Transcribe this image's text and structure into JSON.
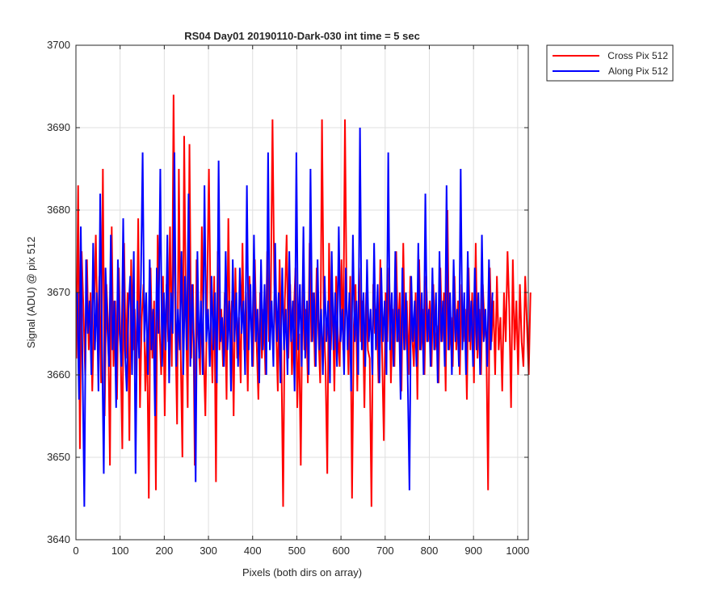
{
  "chart_data": {
    "type": "line",
    "title": "RS04 Day01 20190110-Dark-030 int time = 5 sec",
    "xlabel": "Pixels (both dirs on array)",
    "ylabel": "Signal (ADU) @ pix 512",
    "xlim": [
      0,
      1024
    ],
    "ylim": [
      3640,
      3700
    ],
    "xticks": [
      0,
      100,
      200,
      300,
      400,
      500,
      600,
      700,
      800,
      900,
      1000
    ],
    "yticks": [
      3640,
      3650,
      3660,
      3670,
      3680,
      3690,
      3700
    ],
    "grid": true,
    "legend_position": "outside-top-right",
    "series": [
      {
        "name": "Cross Pix 512",
        "color": "#ff0000",
        "x_start": 1,
        "x_step": 4,
        "values": [
          3662,
          3683,
          3651,
          3675,
          3668,
          3660,
          3674,
          3663,
          3670,
          3658,
          3667,
          3677,
          3664,
          3672,
          3659,
          3685,
          3655,
          3671,
          3666,
          3649,
          3678,
          3661,
          3669,
          3657,
          3673,
          3664,
          3651,
          3676,
          3662,
          3670,
          3652,
          3674,
          3663,
          3668,
          3660,
          3679,
          3656,
          3667,
          3671,
          3658,
          3665,
          3645,
          3673,
          3662,
          3669,
          3646,
          3677,
          3666,
          3660,
          3672,
          3655,
          3671,
          3664,
          3678,
          3661,
          3694,
          3666,
          3654,
          3685,
          3663,
          3650,
          3689,
          3667,
          3656,
          3688,
          3662,
          3671,
          3649,
          3674,
          3665,
          3660,
          3678,
          3663,
          3655,
          3670,
          3685,
          3667,
          3659,
          3672,
          3647,
          3675,
          3663,
          3668,
          3661,
          3670,
          3657,
          3679,
          3664,
          3669,
          3655,
          3673,
          3662,
          3667,
          3659,
          3676,
          3663,
          3670,
          3658,
          3672,
          3666,
          3661,
          3674,
          3664,
          3657,
          3670,
          3662,
          3668,
          3660,
          3675,
          3664,
          3669,
          3691,
          3671,
          3666,
          3658,
          3674,
          3663,
          3644,
          3669,
          3677,
          3662,
          3671,
          3660,
          3667,
          3673,
          3656,
          3665,
          3649,
          3671,
          3663,
          3668,
          3659,
          3676,
          3664,
          3670,
          3661,
          3673,
          3665,
          3659,
          3691,
          3667,
          3661,
          3648,
          3676,
          3663,
          3670,
          3658,
          3672,
          3665,
          3661,
          3674,
          3663,
          3691,
          3668,
          3660,
          3672,
          3645,
          3666,
          3671,
          3658,
          3673,
          3664,
          3669,
          3656,
          3670,
          3663,
          3662,
          3644,
          3671,
          3665,
          3668,
          3659,
          3674,
          3663,
          3652,
          3670,
          3664,
          3673,
          3659,
          3668,
          3661,
          3675,
          3664,
          3670,
          3658,
          3676,
          3663,
          3669,
          3660,
          3672,
          3665,
          3661,
          3670,
          3657,
          3674,
          3663,
          3668,
          3660,
          3672,
          3664,
          3669,
          3661,
          3671,
          3663,
          3666,
          3659,
          3673,
          3664,
          3670,
          3658,
          3680,
          3663,
          3667,
          3661,
          3672,
          3663,
          3669,
          3660,
          3671,
          3664,
          3668,
          3657,
          3673,
          3663,
          3670,
          3659,
          3676,
          3662,
          3668,
          3660,
          3671,
          3666,
          3664,
          3646,
          3673,
          3664,
          3669,
          3660,
          3672,
          3663,
          3667,
          3658,
          3670,
          3664,
          3675,
          3668,
          3656,
          3674,
          3663,
          3669,
          3660,
          3671,
          3664,
          3661,
          3672,
          3666,
          3660,
          3670
        ]
      },
      {
        "name": "Along Pix 512",
        "color": "#0000ff",
        "x_start": 3,
        "x_step": 4,
        "values": [
          3670,
          3657,
          3678,
          3661,
          3644,
          3674,
          3665,
          3669,
          3660,
          3676,
          3663,
          3670,
          3658,
          3682,
          3664,
          3648,
          3673,
          3666,
          3661,
          3677,
          3663,
          3669,
          3656,
          3674,
          3665,
          3661,
          3679,
          3663,
          3658,
          3668,
          3672,
          3660,
          3675,
          3648,
          3669,
          3662,
          3671,
          3687,
          3664,
          3670,
          3660,
          3674,
          3663,
          3668,
          3655,
          3673,
          3665,
          3685,
          3661,
          3670,
          3663,
          3677,
          3659,
          3670,
          3665,
          3687,
          3661,
          3668,
          3663,
          3675,
          3660,
          3672,
          3663,
          3682,
          3661,
          3671,
          3664,
          3647,
          3675,
          3662,
          3669,
          3660,
          3683,
          3664,
          3668,
          3661,
          3672,
          3663,
          3670,
          3659,
          3686,
          3664,
          3667,
          3661,
          3675,
          3663,
          3669,
          3658,
          3674,
          3664,
          3670,
          3661,
          3673,
          3665,
          3669,
          3660,
          3683,
          3663,
          3671,
          3661,
          3677,
          3664,
          3668,
          3659,
          3674,
          3663,
          3671,
          3660,
          3687,
          3663,
          3669,
          3661,
          3676,
          3664,
          3670,
          3659,
          3673,
          3663,
          3668,
          3660,
          3675,
          3664,
          3669,
          3658,
          3687,
          3663,
          3671,
          3661,
          3678,
          3662,
          3669,
          3660,
          3685,
          3664,
          3670,
          3661,
          3674,
          3663,
          3668,
          3660,
          3672,
          3664,
          3669,
          3659,
          3675,
          3663,
          3670,
          3661,
          3678,
          3664,
          3668,
          3660,
          3673,
          3663,
          3670,
          3658,
          3677,
          3664,
          3669,
          3660,
          3690,
          3663,
          3670,
          3661,
          3674,
          3664,
          3668,
          3660,
          3676,
          3663,
          3671,
          3659,
          3673,
          3664,
          3669,
          3660,
          3687,
          3663,
          3670,
          3661,
          3675,
          3664,
          3668,
          3657,
          3673,
          3663,
          3670,
          3660,
          3646,
          3672,
          3664,
          3669,
          3661,
          3676,
          3663,
          3670,
          3660,
          3682,
          3664,
          3668,
          3661,
          3673,
          3663,
          3670,
          3659,
          3675,
          3664,
          3669,
          3661,
          3683,
          3663,
          3670,
          3660,
          3674,
          3664,
          3668,
          3661,
          3685,
          3663,
          3670,
          3660,
          3675,
          3664,
          3669,
          3661,
          3673,
          3663,
          3670,
          3660,
          3677,
          3664,
          3668,
          3661,
          3674,
          3663,
          3670
        ]
      }
    ]
  }
}
